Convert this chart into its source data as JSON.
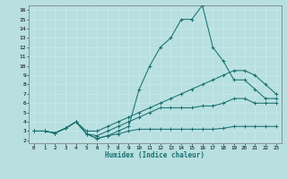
{
  "xlabel": "Humidex (Indice chaleur)",
  "xlim": [
    0,
    23
  ],
  "ylim": [
    2,
    16
  ],
  "xticks": [
    0,
    1,
    2,
    3,
    4,
    5,
    6,
    7,
    8,
    9,
    10,
    11,
    12,
    13,
    14,
    15,
    16,
    17,
    18,
    19,
    20,
    21,
    22,
    23
  ],
  "yticks": [
    2,
    3,
    4,
    5,
    6,
    7,
    8,
    9,
    10,
    11,
    12,
    13,
    14,
    15,
    16
  ],
  "bg_color": "#b8e0e0",
  "grid_color": "#d0f0f0",
  "line_color": "#1a7070",
  "curves": [
    {
      "x": [
        0,
        1,
        2,
        3,
        4,
        5,
        6,
        7,
        8,
        9,
        10,
        11,
        12,
        13,
        14,
        15,
        16,
        17,
        18,
        19,
        20,
        21,
        22,
        23
      ],
      "y": [
        3.0,
        3.0,
        2.8,
        3.3,
        4.0,
        2.7,
        2.2,
        2.5,
        2.7,
        3.0,
        3.2,
        3.2,
        3.2,
        3.2,
        3.2,
        3.2,
        3.2,
        3.2,
        3.3,
        3.5,
        3.5,
        3.5,
        3.5,
        3.5
      ]
    },
    {
      "x": [
        0,
        1,
        2,
        3,
        4,
        5,
        6,
        7,
        8,
        9,
        10,
        11,
        12,
        13,
        14,
        15,
        16,
        17,
        18,
        19,
        20,
        21,
        22,
        23
      ],
      "y": [
        3.0,
        3.0,
        2.8,
        3.3,
        4.0,
        2.7,
        2.2,
        2.5,
        3.0,
        3.5,
        7.5,
        10.0,
        12.0,
        13.0,
        15.0,
        15.0,
        16.5,
        12.0,
        10.5,
        8.5,
        8.5,
        7.5,
        6.5,
        6.5
      ]
    },
    {
      "x": [
        0,
        1,
        2,
        3,
        4,
        5,
        6,
        7,
        8,
        9,
        10,
        11,
        12,
        13,
        14,
        15,
        16,
        17,
        18,
        19,
        20,
        21,
        22,
        23
      ],
      "y": [
        3.0,
        3.0,
        2.8,
        3.3,
        4.0,
        2.7,
        2.5,
        3.0,
        3.5,
        4.0,
        4.5,
        5.0,
        5.5,
        5.5,
        5.5,
        5.5,
        5.7,
        5.7,
        6.0,
        6.5,
        6.5,
        6.0,
        6.0,
        6.0
      ]
    },
    {
      "x": [
        0,
        1,
        2,
        3,
        4,
        5,
        6,
        7,
        8,
        9,
        10,
        11,
        12,
        13,
        14,
        15,
        16,
        17,
        18,
        19,
        20,
        21,
        22,
        23
      ],
      "y": [
        3.0,
        3.0,
        2.8,
        3.3,
        4.0,
        3.0,
        3.0,
        3.5,
        4.0,
        4.5,
        5.0,
        5.5,
        6.0,
        6.5,
        7.0,
        7.5,
        8.0,
        8.5,
        9.0,
        9.5,
        9.5,
        9.0,
        8.0,
        7.0
      ]
    }
  ]
}
